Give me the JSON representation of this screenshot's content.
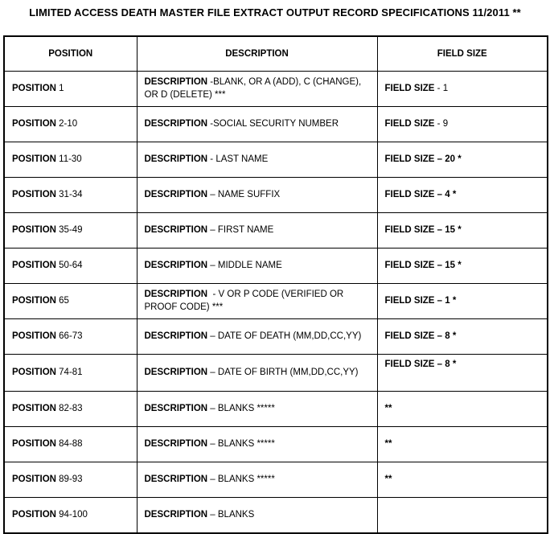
{
  "title": "LIMITED ACCESS DEATH MASTER FILE EXTRACT OUTPUT RECORD SPECIFICATIONS 11/2011 **",
  "table": {
    "headers": [
      "POSITION",
      "DESCRIPTION",
      "FIELD SIZE"
    ],
    "rows": [
      {
        "position": {
          "label": "POSITION",
          "value": " 1"
        },
        "description": {
          "label": "DESCRIPTION",
          "value": " -BLANK, OR A (ADD), C (CHANGE), OR D (DELETE) ***"
        },
        "field_size": {
          "label": "FIELD SIZE",
          "value": " - 1",
          "align": "middle"
        }
      },
      {
        "position": {
          "label": "POSITION",
          "value": " 2-10"
        },
        "description": {
          "label": "DESCRIPTION",
          "value": " -SOCIAL SECURITY NUMBER"
        },
        "field_size": {
          "label": "FIELD SIZE",
          "value": " - 9",
          "align": "middle"
        }
      },
      {
        "position": {
          "label": "POSITION",
          "value": " 11-30"
        },
        "description": {
          "label": "DESCRIPTION",
          "value": " - LAST NAME"
        },
        "field_size": {
          "label": "FIELD SIZE – 20 *",
          "value": "",
          "align": "middle"
        }
      },
      {
        "position": {
          "label": "POSITION",
          "value": " 31-34"
        },
        "description": {
          "label": "DESCRIPTION",
          "value": " – NAME SUFFIX"
        },
        "field_size": {
          "label": "FIELD SIZE – 4 *",
          "value": "",
          "align": "middle"
        }
      },
      {
        "position": {
          "label": "POSITION",
          "value": " 35-49"
        },
        "description": {
          "label": "DESCRIPTION",
          "value": " – FIRST NAME"
        },
        "field_size": {
          "label": "FIELD SIZE – 15 *",
          "value": "",
          "align": "middle"
        }
      },
      {
        "position": {
          "label": "POSITION",
          "value": " 50-64"
        },
        "description": {
          "label": "DESCRIPTION",
          "value": " – MIDDLE NAME"
        },
        "field_size": {
          "label": "FIELD SIZE – 15 *",
          "value": "",
          "align": "middle"
        }
      },
      {
        "position": {
          "label": "POSITION",
          "value": " 65"
        },
        "description": {
          "label": "DESCRIPTION",
          "value": "  - V OR P CODE (VERIFIED OR PROOF CODE) ***"
        },
        "field_size": {
          "label": "FIELD SIZE – 1 *",
          "value": "",
          "align": "middle"
        }
      },
      {
        "position": {
          "label": "POSITION",
          "value": " 66-73"
        },
        "description": {
          "label": "DESCRIPTION",
          "value": " – DATE OF DEATH (MM,DD,CC,YY)"
        },
        "field_size": {
          "label": "FIELD SIZE – 8 *",
          "value": "",
          "align": "middle"
        }
      },
      {
        "position": {
          "label": "POSITION",
          "value": " 74-81"
        },
        "description": {
          "label": "DESCRIPTION",
          "value": " – DATE OF BIRTH (MM,DD,CC,YY)"
        },
        "field_size": {
          "label": "FIELD SIZE – 8 *",
          "value": "",
          "align": "top"
        }
      },
      {
        "position": {
          "label": "POSITION",
          "value": " 82-83"
        },
        "description": {
          "label": "DESCRIPTION",
          "value": " – BLANKS *****"
        },
        "field_size": {
          "label": "**",
          "value": "",
          "align": "middle"
        }
      },
      {
        "position": {
          "label": "POSITION",
          "value": " 84-88"
        },
        "description": {
          "label": "DESCRIPTION",
          "value": " – BLANKS *****"
        },
        "field_size": {
          "label": "**",
          "value": "",
          "align": "middle"
        }
      },
      {
        "position": {
          "label": "POSITION",
          "value": " 89-93"
        },
        "description": {
          "label": "DESCRIPTION",
          "value": " – BLANKS *****"
        },
        "field_size": {
          "label": "**",
          "value": "",
          "align": "middle"
        }
      },
      {
        "position": {
          "label": "POSITION",
          "value": " 94-100"
        },
        "description": {
          "label": "DESCRIPTION",
          "value": " – BLANKS"
        },
        "field_size": {
          "label": "",
          "value": "",
          "align": "middle"
        }
      }
    ]
  }
}
